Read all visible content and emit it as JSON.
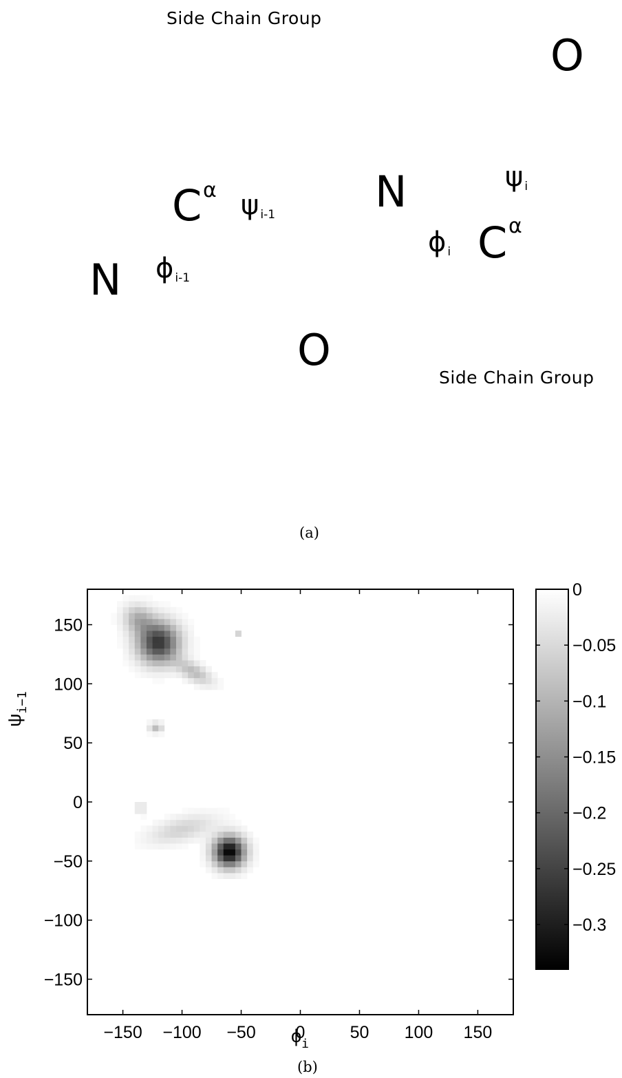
{
  "diagram": {
    "side_chain_top": "Side Chain Group",
    "side_chain_bottom": "Side Chain Group",
    "atom_o_top": "O",
    "atom_o_bottom": "O",
    "atom_n_left": "N",
    "atom_n_right": "N",
    "atom_ca_left": "C",
    "atom_ca_right": "C",
    "ca_superscript": "α",
    "phi_prev": {
      "symbol": "ϕ",
      "sub": "i-1"
    },
    "psi_prev": {
      "symbol": "ψ",
      "sub": "i-1"
    },
    "phi_i": {
      "symbol": "ϕ",
      "sub": "i"
    },
    "psi_i": {
      "symbol": "ψ",
      "sub": "i"
    }
  },
  "caption_a": "(a)",
  "caption_b": "(b)",
  "chart_data": {
    "type": "heatmap",
    "xlabel": "ϕ",
    "xlabel_sub": "i",
    "ylabel": "ψ",
    "ylabel_sub": "i−1",
    "xlim": [
      -180,
      180
    ],
    "ylim": [
      -180,
      180
    ],
    "xticks": [
      -150,
      -100,
      -50,
      0,
      50,
      100,
      150
    ],
    "yticks": [
      -150,
      -100,
      -50,
      0,
      50,
      100,
      150
    ],
    "xtick_labels": [
      "−150",
      "−100",
      "−50",
      "0",
      "50",
      "100",
      "150"
    ],
    "ytick_labels": [
      "−150",
      "−100",
      "−50",
      "0",
      "50",
      "100",
      "150"
    ],
    "colormap": "gray",
    "colorbar": {
      "min": -0.34,
      "max": 0,
      "ticks": [
        0,
        -0.05,
        -0.1,
        -0.15,
        -0.2,
        -0.25,
        -0.3
      ],
      "tick_labels": [
        "0",
        "−0.05",
        "−0.1",
        "−0.15",
        "−0.2",
        "−0.25",
        "−0.3"
      ]
    },
    "grid": false,
    "bin_size": 5,
    "regions": [
      {
        "center": [
          -120,
          135
        ],
        "sigma": [
          12,
          12
        ],
        "rotation_deg": -38,
        "peak": -0.27
      },
      {
        "center": [
          -137,
          155
        ],
        "sigma": [
          9,
          8
        ],
        "rotation_deg": -30,
        "peak": -0.1
      },
      {
        "center": [
          -90,
          110
        ],
        "sigma": [
          12,
          5
        ],
        "rotation_deg": -30,
        "peak": -0.09
      },
      {
        "center": [
          -122,
          63
        ],
        "sigma": [
          4,
          3
        ],
        "rotation_deg": 0,
        "peak": -0.09
      },
      {
        "center": [
          -135,
          -5
        ],
        "sigma": [
          4,
          4
        ],
        "rotation_deg": 0,
        "peak": -0.04
      },
      {
        "center": [
          -100,
          -23
        ],
        "sigma": [
          20,
          7
        ],
        "rotation_deg": 15,
        "peak": -0.06
      },
      {
        "center": [
          -60,
          -42
        ],
        "sigma": [
          9,
          9
        ],
        "rotation_deg": 0,
        "peak": -0.34
      },
      {
        "center": [
          -53,
          143
        ],
        "sigma": [
          2,
          2
        ],
        "rotation_deg": 0,
        "peak": -0.06
      }
    ]
  }
}
